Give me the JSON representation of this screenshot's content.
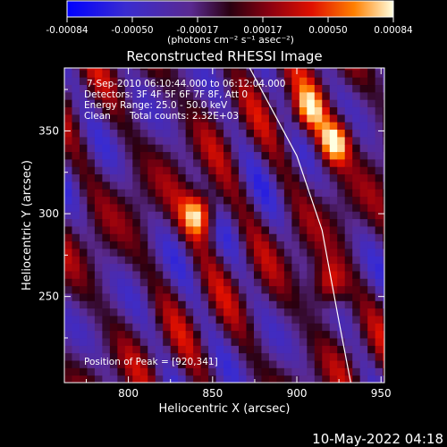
{
  "colorbar": {
    "tick_labels": [
      "-0.00084",
      "-0.00050",
      "-0.00017",
      "0.00017",
      "0.00050",
      "0.00084"
    ],
    "unit_label": "(photons cm⁻² s⁻¹ asec⁻²)"
  },
  "info": {
    "time_range": "7-Sep-2010 06:10:44.000 to 06:12:04.000",
    "detectors": "Detectors: 3F 4F 5F 6F 7F 8F, Att 0",
    "energy": "Energy Range: 25.0 - 50.0 keV",
    "method": "Clean",
    "counts": "Total counts: 2.32E+03",
    "peak": "Position of Peak = [920,341]"
  },
  "timestamp": "10-May-2022 04:18",
  "chart_data": {
    "type": "heatmap",
    "title": "Reconstructed RHESSI Image",
    "xlabel": "Heliocentric X (arcsec)",
    "ylabel": "Heliocentric Y (arcsec)",
    "xlim": [
      762,
      952
    ],
    "ylim": [
      198,
      388
    ],
    "x_ticks": [
      800,
      850,
      900,
      950
    ],
    "y_ticks": [
      250,
      300,
      350
    ],
    "x_tick_labels": [
      "800",
      "850",
      "900",
      "950"
    ],
    "y_tick_labels": [
      "250",
      "300",
      "350"
    ],
    "color_range": [
      -0.00084,
      0.00084
    ],
    "grid": false,
    "peak": [
      920,
      341
    ],
    "sources": [
      {
        "x": 840,
        "y": 298,
        "intensity": 0.00084
      },
      {
        "x": 920,
        "y": 341,
        "intensity": 0.00084
      },
      {
        "x": 917,
        "y": 255,
        "intensity": 0.0006
      },
      {
        "x": 905,
        "y": 360,
        "intensity": 0.0006
      }
    ],
    "limb_curve": [
      [
        872,
        388
      ],
      [
        900,
        335
      ],
      [
        915,
        290
      ],
      [
        925,
        235
      ],
      [
        932,
        198
      ]
    ]
  }
}
